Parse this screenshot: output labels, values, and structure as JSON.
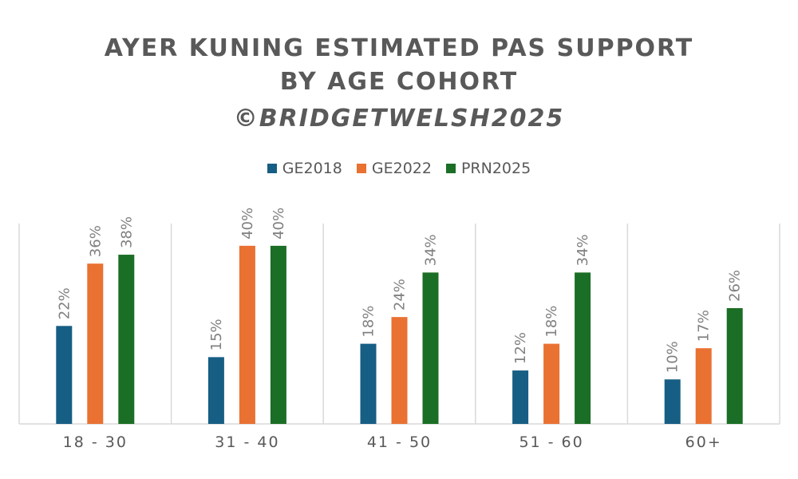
{
  "chart_data": {
    "type": "bar",
    "title_lines": [
      "AYER KUNING ESTIMATED PAS SUPPORT",
      "BY AGE COHORT",
      "©BRIDGETWELSH2025"
    ],
    "categories": [
      "18 - 30",
      "31 - 40",
      "41 - 50",
      "51 - 60",
      "60+"
    ],
    "series": [
      {
        "name": "GE2018",
        "color": "#175e84",
        "values": [
          22,
          15,
          18,
          12,
          10
        ]
      },
      {
        "name": "GE2022",
        "color": "#e97132",
        "values": [
          36,
          40,
          24,
          18,
          17
        ]
      },
      {
        "name": "PRN2025",
        "color": "#1b6e25",
        "values": [
          38,
          40,
          34,
          34,
          26
        ]
      }
    ],
    "value_format": "percent",
    "ylim": [
      0,
      45
    ],
    "xlabel": "",
    "ylabel": "",
    "grid": false,
    "legend_position": "top"
  }
}
